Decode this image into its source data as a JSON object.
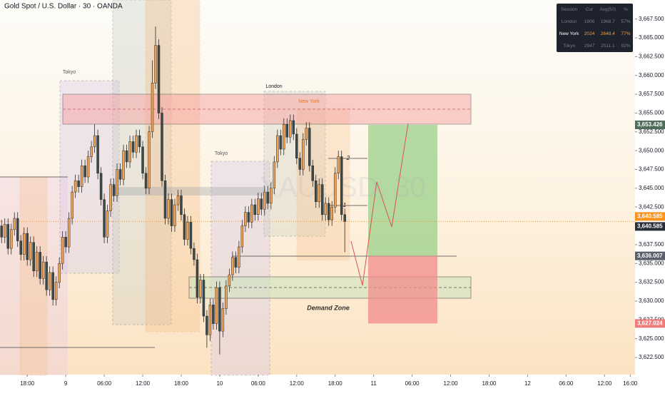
{
  "chart_data": {
    "type": "candlestick",
    "title": "Gold Spot / U.S. Dollar · 30 · OANDA",
    "watermark": "XAUUSD, 30",
    "up_color": "#f1a253",
    "down_color": "#3e4a48",
    "x": [
      -8,
      -7,
      -6,
      -5,
      -4,
      -3,
      -2,
      -1,
      0,
      1,
      2,
      3,
      4,
      5,
      6,
      7,
      8,
      9,
      10,
      11,
      12,
      13,
      14,
      15,
      16,
      17,
      18,
      19,
      20,
      21,
      22,
      23,
      24,
      25,
      26,
      27,
      28,
      29,
      30,
      31,
      32,
      33,
      34,
      35,
      36,
      37,
      38,
      39,
      40,
      41,
      42,
      43,
      44,
      45,
      46,
      47,
      48,
      49,
      50,
      51,
      52,
      53,
      54,
      55,
      56,
      57,
      58,
      59,
      60,
      61,
      62,
      63,
      64,
      65,
      66,
      67,
      68,
      69,
      70,
      71,
      72,
      73,
      74,
      75,
      76,
      77,
      78,
      79,
      80,
      81,
      82,
      83,
      84,
      85,
      86,
      87,
      88,
      89,
      90,
      91,
      92,
      93,
      94,
      95,
      96,
      97,
      98,
      99
    ],
    "open": [
      3640.0,
      3638.5,
      3640.2,
      3637.0,
      3639.5,
      3641.0,
      3638.0,
      3636.2,
      3639.0,
      3635.5,
      3637.8,
      3634.0,
      3636.5,
      3633.0,
      3635.2,
      3631.5,
      3633.8,
      3630.2,
      3632.5,
      3635.0,
      3638.5,
      3637.2,
      3641.0,
      3644.5,
      3646.0,
      3645.2,
      3648.0,
      3646.5,
      3649.2,
      3650.5,
      3652.0,
      3647.0,
      3643.5,
      3638.5,
      3642.0,
      3645.5,
      3644.0,
      3647.5,
      3646.2,
      3650.0,
      3648.5,
      3651.2,
      3649.8,
      3652.0,
      3650.5,
      3647.0,
      3645.0,
      3652.5,
      3659.0,
      3664.0,
      3655.0,
      3646.0,
      3641.0,
      3643.5,
      3640.0,
      3642.8,
      3644.0,
      3641.5,
      3638.2,
      3640.5,
      3637.0,
      3635.5,
      3630.5,
      3632.8,
      3628.0,
      3625.5,
      3629.5,
      3627.0,
      3631.8,
      3626.0,
      3629.0,
      3632.0,
      3633.5,
      3635.8,
      3634.5,
      3637.2,
      3640.0,
      3641.8,
      3640.5,
      3642.8,
      3641.5,
      3643.6,
      3642.2,
      3644.5,
      3643.0,
      3645.0,
      3648.5,
      3652.0,
      3650.2,
      3653.5,
      3651.8,
      3654.0,
      3652.2,
      3649.0,
      3647.5,
      3651.5,
      3653.0,
      3648.0,
      3646.0,
      3643.2,
      3645.5,
      3641.5,
      3643.0,
      3640.8,
      3642.5,
      3647.0,
      3649.2,
      3641.5
    ],
    "high": [
      3640.8,
      3641.0,
      3641.0,
      3640.3,
      3641.8,
      3641.8,
      3638.8,
      3639.8,
      3639.8,
      3638.6,
      3638.6,
      3637.3,
      3637.3,
      3636.0,
      3636.0,
      3634.6,
      3634.6,
      3633.3,
      3635.8,
      3639.3,
      3639.3,
      3641.8,
      3645.3,
      3646.8,
      3646.8,
      3648.8,
      3648.8,
      3650.0,
      3651.3,
      3653.5,
      3652.8,
      3647.8,
      3644.3,
      3642.8,
      3646.3,
      3646.3,
      3648.3,
      3648.3,
      3650.8,
      3650.8,
      3652.0,
      3652.0,
      3652.8,
      3652.8,
      3651.3,
      3647.8,
      3653.3,
      3662.0,
      3666.5,
      3664.8,
      3655.8,
      3646.8,
      3644.3,
      3644.3,
      3643.6,
      3644.8,
      3644.8,
      3642.3,
      3641.3,
      3641.3,
      3637.8,
      3636.3,
      3633.6,
      3633.6,
      3628.8,
      3630.3,
      3630.3,
      3632.6,
      3632.6,
      3629.8,
      3632.8,
      3634.3,
      3636.6,
      3636.6,
      3638.0,
      3640.8,
      3642.6,
      3642.6,
      3643.6,
      3643.6,
      3644.4,
      3644.4,
      3645.3,
      3645.3,
      3645.8,
      3649.3,
      3652.8,
      3652.8,
      3654.3,
      3654.3,
      3654.8,
      3654.8,
      3653.0,
      3649.8,
      3652.3,
      3653.8,
      3653.8,
      3648.8,
      3646.8,
      3646.3,
      3646.3,
      3643.8,
      3643.8,
      3643.3,
      3647.8,
      3650.0,
      3650.0,
      3642.3
    ],
    "low": [
      3637.7,
      3637.7,
      3636.2,
      3636.2,
      3638.7,
      3637.2,
      3635.4,
      3635.4,
      3634.7,
      3634.7,
      3633.2,
      3633.2,
      3632.2,
      3632.2,
      3630.7,
      3630.7,
      3629.4,
      3629.4,
      3631.7,
      3634.2,
      3636.4,
      3636.4,
      3640.2,
      3643.7,
      3644.4,
      3644.4,
      3645.7,
      3645.7,
      3648.4,
      3649.7,
      3646.2,
      3642.7,
      3637.7,
      3637.7,
      3641.2,
      3643.2,
      3643.2,
      3645.4,
      3645.4,
      3647.7,
      3647.7,
      3649.0,
      3649.0,
      3649.7,
      3646.2,
      3644.2,
      3644.2,
      3651.7,
      3658.2,
      3654.2,
      3645.2,
      3640.2,
      3640.2,
      3639.2,
      3639.2,
      3642.0,
      3640.7,
      3637.4,
      3637.4,
      3636.2,
      3634.7,
      3629.7,
      3629.7,
      3627.2,
      3623.8,
      3624.7,
      3626.2,
      3626.2,
      3622.9,
      3625.2,
      3628.2,
      3631.2,
      3632.7,
      3633.7,
      3633.7,
      3636.4,
      3639.2,
      3639.7,
      3639.7,
      3640.7,
      3640.7,
      3641.4,
      3641.4,
      3642.2,
      3642.2,
      3644.2,
      3647.7,
      3649.4,
      3649.4,
      3651.0,
      3651.0,
      3651.4,
      3648.2,
      3646.7,
      3646.7,
      3650.7,
      3647.2,
      3645.2,
      3642.4,
      3642.4,
      3640.7,
      3640.7,
      3640.0,
      3640.0,
      3641.7,
      3646.2,
      3640.7,
      3636.5
    ],
    "close": [
      3638.5,
      3640.2,
      3637.0,
      3639.5,
      3641.0,
      3638.0,
      3636.2,
      3639.0,
      3635.5,
      3637.8,
      3634.0,
      3636.5,
      3633.0,
      3635.2,
      3631.5,
      3633.8,
      3630.2,
      3632.5,
      3635.0,
      3638.5,
      3637.2,
      3641.0,
      3644.5,
      3646.0,
      3645.2,
      3648.0,
      3646.5,
      3649.2,
      3650.5,
      3652.0,
      3647.0,
      3643.5,
      3638.5,
      3642.0,
      3645.5,
      3644.0,
      3647.5,
      3646.2,
      3650.0,
      3648.5,
      3651.2,
      3649.8,
      3652.0,
      3650.5,
      3647.0,
      3645.0,
      3652.5,
      3659.0,
      3664.0,
      3655.0,
      3646.0,
      3641.0,
      3643.5,
      3640.0,
      3642.8,
      3644.0,
      3641.5,
      3638.2,
      3640.5,
      3637.0,
      3635.5,
      3630.5,
      3632.8,
      3628.0,
      3625.5,
      3629.5,
      3627.0,
      3631.8,
      3626.0,
      3629.0,
      3632.0,
      3633.5,
      3635.8,
      3634.5,
      3637.2,
      3640.0,
      3641.8,
      3640.5,
      3642.8,
      3641.5,
      3643.6,
      3642.2,
      3644.5,
      3643.0,
      3645.0,
      3648.5,
      3652.0,
      3650.2,
      3653.5,
      3651.8,
      3654.0,
      3652.2,
      3649.0,
      3647.5,
      3651.5,
      3653.0,
      3648.0,
      3646.0,
      3643.2,
      3645.5,
      3641.5,
      3643.0,
      3640.8,
      3642.5,
      3647.0,
      3649.2,
      3641.5,
      3640.585
    ],
    "xlim": [
      -8.5,
      189.5
    ],
    "xticks": [
      {
        "value": 0,
        "label": "18:00"
      },
      {
        "value": 12,
        "label": "9"
      },
      {
        "value": 24,
        "label": "06:00"
      },
      {
        "value": 36,
        "label": "12:00"
      },
      {
        "value": 48,
        "label": "18:00"
      },
      {
        "value": 60,
        "label": "10"
      },
      {
        "value": 72,
        "label": "06:00"
      },
      {
        "value": 84,
        "label": "12:00"
      },
      {
        "value": 96,
        "label": "18:00"
      },
      {
        "value": 108,
        "label": "11"
      },
      {
        "value": 120,
        "label": "06:00"
      },
      {
        "value": 132,
        "label": "12:00"
      },
      {
        "value": 144,
        "label": "18:00"
      },
      {
        "value": 156,
        "label": "12"
      },
      {
        "value": 168,
        "label": "06:00"
      },
      {
        "value": 180,
        "label": "12:00"
      },
      {
        "value": 188,
        "label": "16:00"
      }
    ],
    "ylim": [
      3620.7,
      3670.03
    ],
    "yticks": [
      {
        "value": 3622.5,
        "label": "3,622.500"
      },
      {
        "value": 3625,
        "label": "3,625.000"
      },
      {
        "value": 3627.5,
        "label": "3,627.500"
      },
      {
        "value": 3630,
        "label": "3,630.000"
      },
      {
        "value": 3632.5,
        "label": "3,632.500"
      },
      {
        "value": 3635,
        "label": "3,635.000"
      },
      {
        "value": 3637.5,
        "label": "3,637.500"
      },
      {
        "value": 3640,
        "label": "3,640.000"
      },
      {
        "value": 3642.5,
        "label": "3,642.500"
      },
      {
        "value": 3645,
        "label": "3,645.000"
      },
      {
        "value": 3647.5,
        "label": "3,647.500"
      },
      {
        "value": 3650,
        "label": "3,650.000"
      },
      {
        "value": 3652.5,
        "label": "3,652.500"
      },
      {
        "value": 3655,
        "label": "3,655.000"
      },
      {
        "value": 3657.5,
        "label": "3,657.500"
      },
      {
        "value": 3660,
        "label": "3,660.000"
      },
      {
        "value": 3662.5,
        "label": "3,662.500"
      },
      {
        "value": 3665,
        "label": "3,665.000"
      },
      {
        "value": 3667.5,
        "label": "3,667.500"
      }
    ],
    "price_badges": [
      {
        "value": 3653.426,
        "label": "3,653.426",
        "color": "#506d5c"
      },
      {
        "value": 3640.585,
        "label": "3,640.585",
        "color": "#f7931e"
      },
      {
        "value": 3640.585,
        "label": "3,640.585",
        "color": "#2a2e39"
      },
      {
        "value": 3636.007,
        "label": "3,636.007",
        "color": "#5d606b"
      },
      {
        "value": 3627.024,
        "label": "3,627.024",
        "color": "#ef7b7b"
      }
    ],
    "annotations": [
      "Tokyo",
      "London",
      "New York",
      "Tokyo",
      "Demand Zone",
      "2",
      "1"
    ],
    "session_table": {
      "columns": [
        "Session",
        "Cur",
        "Avg(50)",
        "%"
      ],
      "rows": [
        [
          "London",
          "1806",
          "1968.7",
          "57%"
        ],
        [
          "New York",
          "2024",
          "2648.4",
          "77%"
        ],
        [
          "Tokyo",
          "2947",
          "2511.1",
          "92%"
        ]
      ]
    }
  }
}
